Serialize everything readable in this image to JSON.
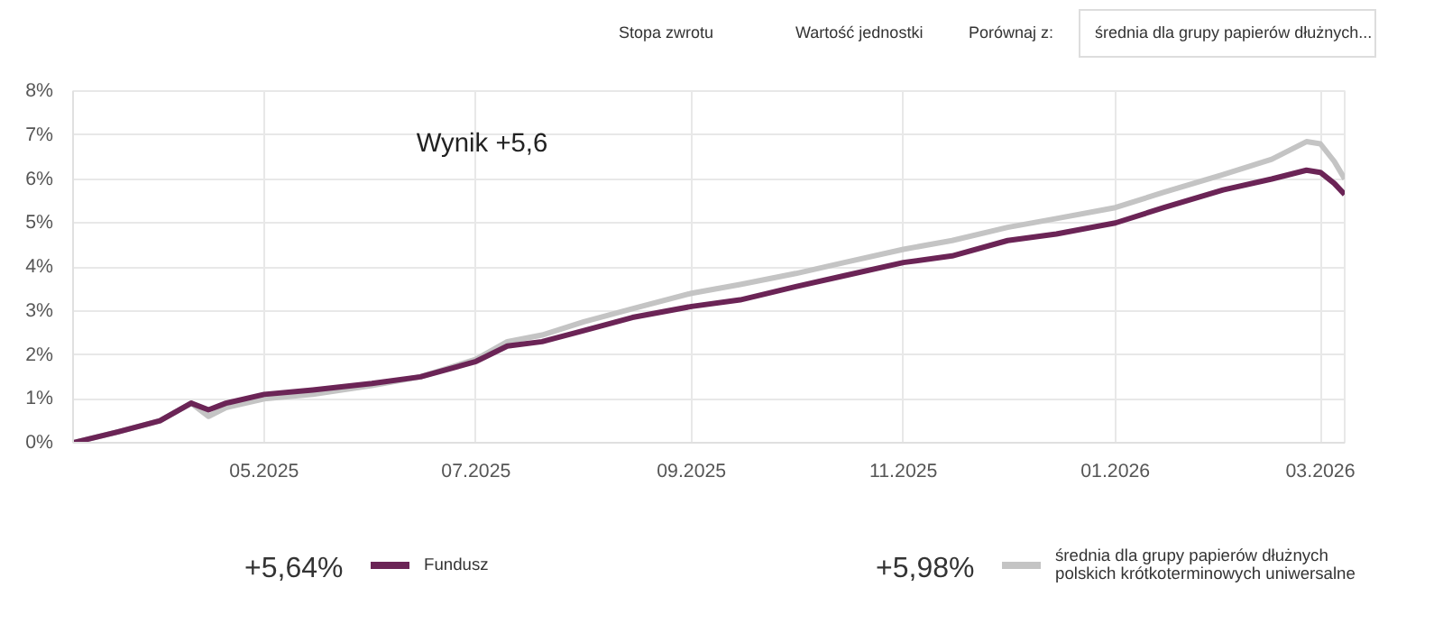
{
  "chart_data": {
    "type": "line",
    "x": [
      "2025-03-07",
      "2025-03-20",
      "2025-04-01",
      "2025-04-10",
      "2025-04-15",
      "2025-04-20",
      "2025-05-01",
      "2025-05-15",
      "2025-06-01",
      "2025-06-15",
      "2025-07-01",
      "2025-07-10",
      "2025-07-20",
      "2025-08-01",
      "2025-08-15",
      "2025-09-01",
      "2025-09-15",
      "2025-10-01",
      "2025-10-15",
      "2025-11-01",
      "2025-11-15",
      "2025-12-01",
      "2025-12-15",
      "2026-01-01",
      "2026-01-15",
      "2026-02-01",
      "2026-02-15",
      "2026-02-25",
      "2026-03-01",
      "2026-03-05",
      "2026-03-08"
    ],
    "series": [
      {
        "name": "Fundusz",
        "color": "#6b2456",
        "values": [
          0,
          0.25,
          0.5,
          0.9,
          0.75,
          0.9,
          1.1,
          1.2,
          1.35,
          1.5,
          1.85,
          2.2,
          2.3,
          2.55,
          2.85,
          3.1,
          3.25,
          3.55,
          3.8,
          4.1,
          4.25,
          4.6,
          4.75,
          5.0,
          5.35,
          5.75,
          6.0,
          6.2,
          6.15,
          5.9,
          5.65
        ]
      },
      {
        "name": "średnia dla grupy papierów dłużnych polskich krótkoterminowych uniwersalne",
        "color": "#c4c4c4",
        "values": [
          0,
          0.25,
          0.5,
          0.9,
          0.6,
          0.8,
          1.0,
          1.1,
          1.3,
          1.5,
          1.9,
          2.3,
          2.45,
          2.75,
          3.05,
          3.4,
          3.6,
          3.85,
          4.1,
          4.4,
          4.6,
          4.9,
          5.1,
          5.35,
          5.7,
          6.1,
          6.45,
          6.85,
          6.8,
          6.4,
          6.0
        ]
      }
    ],
    "xlim": [
      "2025-03-07",
      "2026-03-08"
    ],
    "xticks": [
      {
        "value": "2025-05-01",
        "label": "05.2025"
      },
      {
        "value": "2025-07-01",
        "label": "07.2025"
      },
      {
        "value": "2025-09-01",
        "label": "09.2025"
      },
      {
        "value": "2025-11-01",
        "label": "11.2025"
      },
      {
        "value": "2026-01-01",
        "label": "01.2026"
      },
      {
        "value": "2026-03-01",
        "label": "03.2026"
      }
    ],
    "ylim": [
      0,
      8
    ],
    "yticks": [
      {
        "value": 0,
        "label": "0%"
      },
      {
        "value": 1,
        "label": "1%"
      },
      {
        "value": 2,
        "label": "2%"
      },
      {
        "value": 3,
        "label": "3%"
      },
      {
        "value": 4,
        "label": "4%"
      },
      {
        "value": 5,
        "label": "5%"
      },
      {
        "value": 6,
        "label": "6%"
      },
      {
        "value": 7,
        "label": "7%"
      },
      {
        "value": 8,
        "label": "8%"
      }
    ],
    "grid": true,
    "legend": "bottom",
    "marker": "none",
    "line_style": "solid",
    "annotations": [
      "Wynik +5,6",
      "Stopa zwrotu",
      "Wartość jednostki",
      "Porównaj z:",
      "średnia dla grupy papierów dłużnych...",
      "+5,64%",
      "+5,98%"
    ]
  }
}
